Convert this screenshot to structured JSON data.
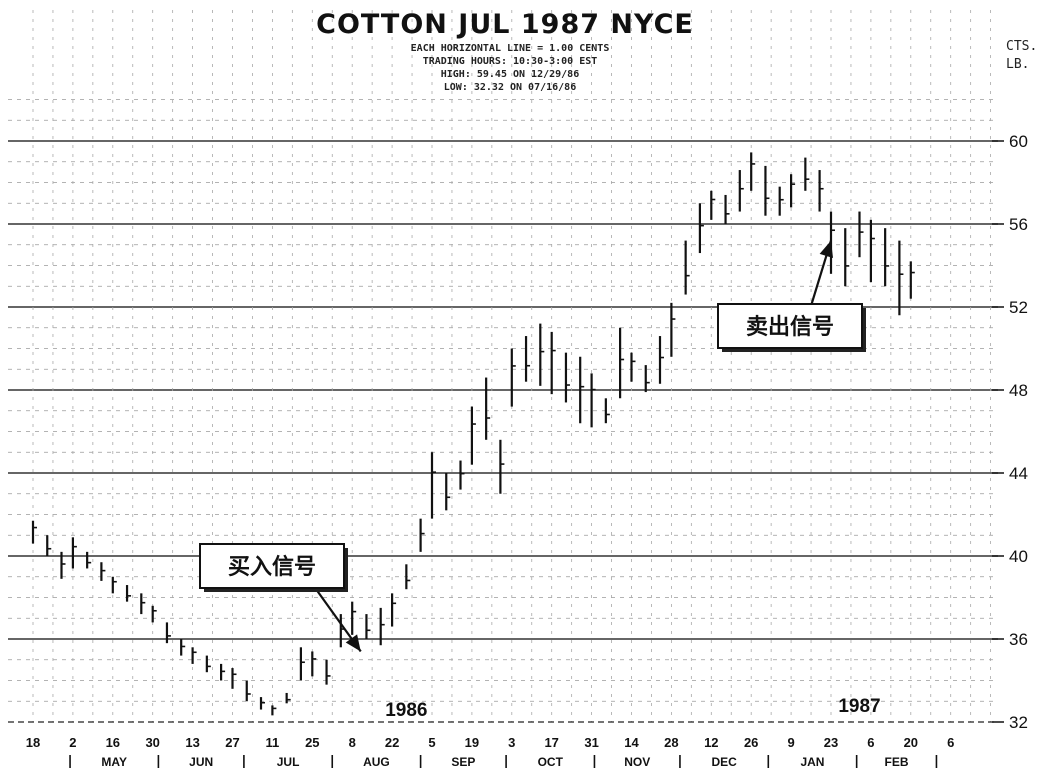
{
  "chart_data": {
    "type": "bar",
    "title": "COTTON JUL 1987 NYCE",
    "subtitle_lines": [
      "EACH HORIZONTAL LINE = 1.00 CENTS",
      "TRADING HOURS: 10:30-3:00 EST",
      "HIGH: 59.45 ON 12/29/86",
      "LOW: 32.32 ON 07/16/86"
    ],
    "unit_label": [
      "CTS.",
      "LB."
    ],
    "ylim": [
      32,
      62
    ],
    "yticks": [
      32,
      36,
      40,
      44,
      48,
      52,
      56,
      60
    ],
    "grid": true,
    "date_ticks": [
      "18",
      "2",
      "16",
      "30",
      "13",
      "27",
      "11",
      "25",
      "8",
      "22",
      "5",
      "19",
      "3",
      "17",
      "31",
      "14",
      "28",
      "12",
      "26",
      "9",
      "23",
      "6",
      "20",
      "6"
    ],
    "months": [
      "MAY",
      "JUN",
      "JUL",
      "AUG",
      "SEP",
      "OCT",
      "NOV",
      "DEC",
      "JAN",
      "FEB"
    ],
    "years": [
      "1986",
      "1987"
    ],
    "series": [
      {
        "x": [
          "1986-04-18",
          "1986-04-23",
          "1986-04-28",
          "1986-05-02",
          "1986-05-07",
          "1986-05-12",
          "1986-05-16",
          "1986-05-21",
          "1986-05-26",
          "1986-05-30",
          "1986-06-04",
          "1986-06-09",
          "1986-06-13",
          "1986-06-18",
          "1986-06-23",
          "1986-06-27",
          "1986-07-02",
          "1986-07-07",
          "1986-07-11",
          "1986-07-16",
          "1986-07-21",
          "1986-07-25",
          "1986-07-30",
          "1986-08-04",
          "1986-08-08",
          "1986-08-13",
          "1986-08-18",
          "1986-08-22",
          "1986-08-27",
          "1986-09-01",
          "1986-09-05",
          "1986-09-10",
          "1986-09-15",
          "1986-09-19",
          "1986-09-24",
          "1986-09-29",
          "1986-10-03",
          "1986-10-08",
          "1986-10-13",
          "1986-10-17",
          "1986-10-22",
          "1986-10-27",
          "1986-10-31",
          "1986-11-05",
          "1986-11-10",
          "1986-11-14",
          "1986-11-19",
          "1986-11-24",
          "1986-11-28",
          "1986-12-03",
          "1986-12-08",
          "1986-12-12",
          "1986-12-17",
          "1986-12-22",
          "1986-12-26",
          "1986-12-31",
          "1987-01-05",
          "1987-01-09",
          "1987-01-14",
          "1987-01-19",
          "1987-01-23",
          "1987-01-28",
          "1987-02-02",
          "1987-02-06",
          "1987-02-11",
          "1987-02-16",
          "1987-02-20"
        ],
        "high": [
          41.7,
          41.0,
          40.2,
          40.9,
          40.2,
          39.7,
          39.0,
          38.6,
          38.2,
          37.6,
          36.8,
          36.0,
          35.6,
          35.2,
          34.8,
          34.6,
          34.0,
          33.2,
          32.8,
          33.4,
          35.6,
          35.4,
          35.0,
          37.2,
          37.8,
          37.2,
          37.5,
          38.2,
          39.6,
          41.8,
          45.0,
          44.0,
          44.6,
          47.2,
          48.6,
          45.6,
          50.0,
          50.6,
          51.2,
          50.8,
          49.8,
          49.6,
          48.8,
          47.6,
          51.0,
          49.8,
          49.2,
          50.6,
          52.2,
          55.2,
          57.0,
          57.6,
          57.4,
          58.6,
          59.45,
          58.8,
          57.8,
          58.4,
          59.2,
          58.6,
          56.6,
          55.8,
          56.6,
          56.2,
          55.8,
          55.2,
          54.2
        ],
        "low": [
          40.6,
          40.0,
          38.9,
          39.4,
          39.4,
          38.8,
          38.2,
          37.8,
          37.2,
          36.8,
          35.8,
          35.2,
          34.8,
          34.4,
          34.0,
          33.6,
          33.0,
          32.6,
          32.32,
          32.9,
          34.0,
          34.2,
          33.8,
          35.6,
          36.2,
          36.0,
          35.7,
          36.6,
          38.4,
          40.2,
          41.8,
          42.2,
          43.2,
          44.4,
          45.6,
          43.0,
          47.2,
          48.4,
          48.2,
          47.8,
          47.4,
          46.4,
          46.2,
          46.4,
          47.6,
          48.4,
          47.9,
          48.3,
          49.6,
          52.6,
          54.6,
          56.2,
          56.0,
          56.6,
          57.6,
          56.4,
          56.4,
          56.8,
          57.6,
          56.6,
          53.6,
          53.0,
          54.4,
          53.2,
          53.0,
          51.6,
          52.4
        ]
      }
    ],
    "annotations": [
      {
        "text": "买入信号",
        "date": "1986-08-11",
        "value": 35.4
      },
      {
        "text": "卖出信号",
        "date": "1987-01-23",
        "value": 55.2
      }
    ]
  }
}
